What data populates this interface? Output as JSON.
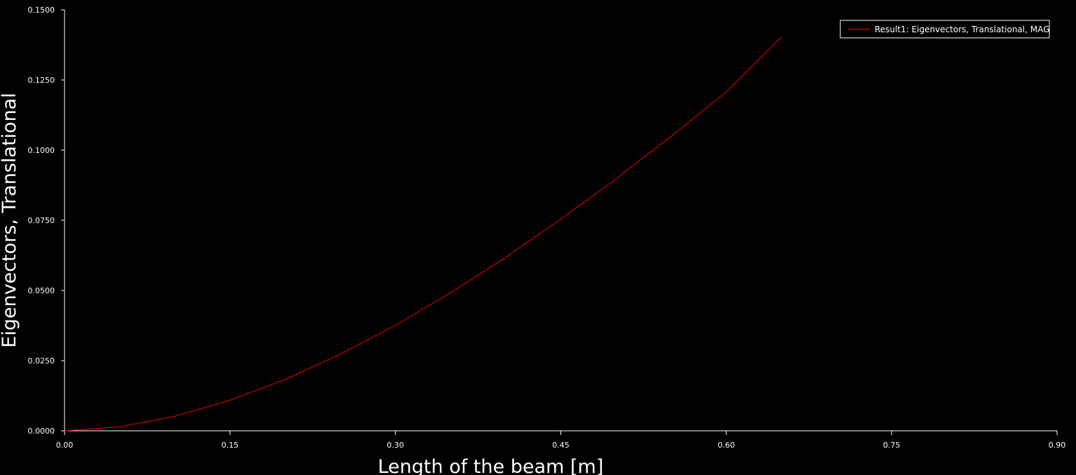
{
  "chart_data": {
    "type": "line",
    "title": "",
    "xlabel": "Length of the beam [m]",
    "ylabel": "Eigenvectors, Translational",
    "xlim": [
      0,
      0.9
    ],
    "ylim": [
      0,
      0.15
    ],
    "x_ticks": [
      "0.00",
      "0.15",
      "0.30",
      "0.45",
      "0.60",
      "0.75",
      "0.90"
    ],
    "y_ticks": [
      "0.0000",
      "0.0250",
      "0.0500",
      "0.0750",
      "0.1000",
      "0.1250",
      "0.1500"
    ],
    "grid": false,
    "legend_position": "top-right",
    "series": [
      {
        "name": "Result1: Eigenvectors, Translational, MAG",
        "color": "#cc0000",
        "x": [
          0.0,
          0.05,
          0.1,
          0.15,
          0.2,
          0.25,
          0.3,
          0.35,
          0.4,
          0.45,
          0.5,
          0.55,
          0.6,
          0.65
        ],
        "y": [
          0.0,
          0.0014,
          0.0052,
          0.0109,
          0.0183,
          0.0273,
          0.0376,
          0.0492,
          0.0618,
          0.0754,
          0.0898,
          0.1049,
          0.1208,
          0.1403
        ]
      }
    ]
  },
  "colors": {
    "background": "#000000",
    "axis": "#ffffff",
    "text": "#ffffff"
  }
}
